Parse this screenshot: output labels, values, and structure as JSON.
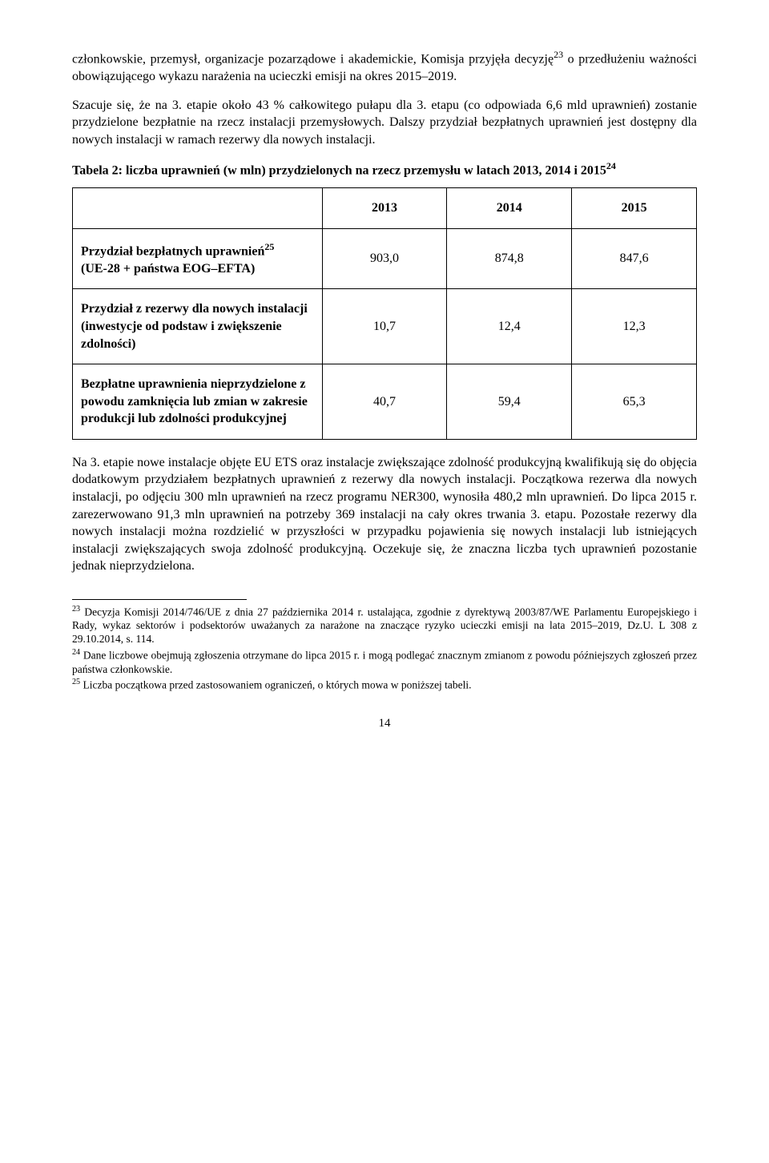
{
  "paragraphs": {
    "p1a": "członkowskie, przemysł, organizacje pozarządowe i akademickie, Komisja przyjęła decyzję",
    "p1sup": "23",
    "p1b": " o przedłużeniu ważności obowiązującego wykazu narażenia na ucieczki emisji na okres 2015–2019.",
    "p2": "Szacuje się, że na 3. etapie około 43 % całkowitego pułapu dla 3. etapu (co odpowiada 6,6 mld uprawnień) zostanie przydzielone bezpłatnie na rzecz instalacji przemysłowych. Dalszy przydział bezpłatnych uprawnień jest dostępny dla nowych instalacji w ramach rezerwy dla nowych instalacji.",
    "p3": "Na 3. etapie nowe instalacje objęte EU ETS oraz instalacje zwiększające zdolność produkcyjną kwalifikują się do objęcia dodatkowym przydziałem bezpłatnych uprawnień z rezerwy dla nowych instalacji. Początkowa rezerwa dla nowych instalacji, po odjęciu 300 mln uprawnień na rzecz programu NER300, wynosiła 480,2 mln uprawnień. Do lipca 2015 r. zarezerwowano 91,3 mln uprawnień na potrzeby 369 instalacji na cały okres trwania 3. etapu. Pozostałe rezerwy dla nowych instalacji można rozdzielić w przyszłości w przypadku pojawienia się nowych instalacji lub istniejących instalacji zwiększających swoja zdolność produkcyjną. Oczekuje się, że znaczna liczba tych uprawnień pozostanie jednak nieprzydzielona."
  },
  "table": {
    "caption_a": "Tabela 2: liczba uprawnień (w mln) przydzielonych na rzecz przemysłu w latach 2013, 2014 i 2015",
    "caption_sup": "24",
    "headers": {
      "c1": "2013",
      "c2": "2014",
      "c3": "2015"
    },
    "rows": [
      {
        "label_a": "Przydział bezpłatnych uprawnień",
        "label_sup": "25",
        "label_b": "(UE-28 + państwa EOG–EFTA)",
        "v1": "903,0",
        "v2": "874,8",
        "v3": "847,6"
      },
      {
        "label_a": "Przydział z rezerwy dla nowych instalacji (inwestycje od podstaw i zwiększenie zdolności)",
        "label_sup": "",
        "label_b": "",
        "v1": "10,7",
        "v2": "12,4",
        "v3": "12,3"
      },
      {
        "label_a": " Bezpłatne uprawnienia nieprzydzielone z powodu zamknięcia lub zmian w zakresie produkcji lub zdolności produkcyjnej",
        "label_sup": "",
        "label_b": "",
        "v1": "40,7",
        "v2": "59,4",
        "v3": "65,3"
      }
    ]
  },
  "footnotes": {
    "f23num": "23",
    "f23": " Decyzja Komisji 2014/746/UE z dnia 27 października 2014 r. ustalająca, zgodnie z dyrektywą 2003/87/WE Parlamentu Europejskiego i Rady, wykaz sektorów i podsektorów uważanych za narażone na znaczące ryzyko ucieczki emisji na lata 2015–2019, Dz.U. L 308 z 29.10.2014, s. 114.",
    "f24num": "24",
    "f24": " Dane liczbowe obejmują zgłoszenia otrzymane do lipca 2015 r. i mogą podlegać znacznym zmianom z powodu późniejszych zgłoszeń przez państwa członkowskie.",
    "f25num": "25",
    "f25": " Liczba początkowa przed zastosowaniem ograniczeń, o których mowa w poniższej tabeli."
  },
  "pagenum": "14"
}
